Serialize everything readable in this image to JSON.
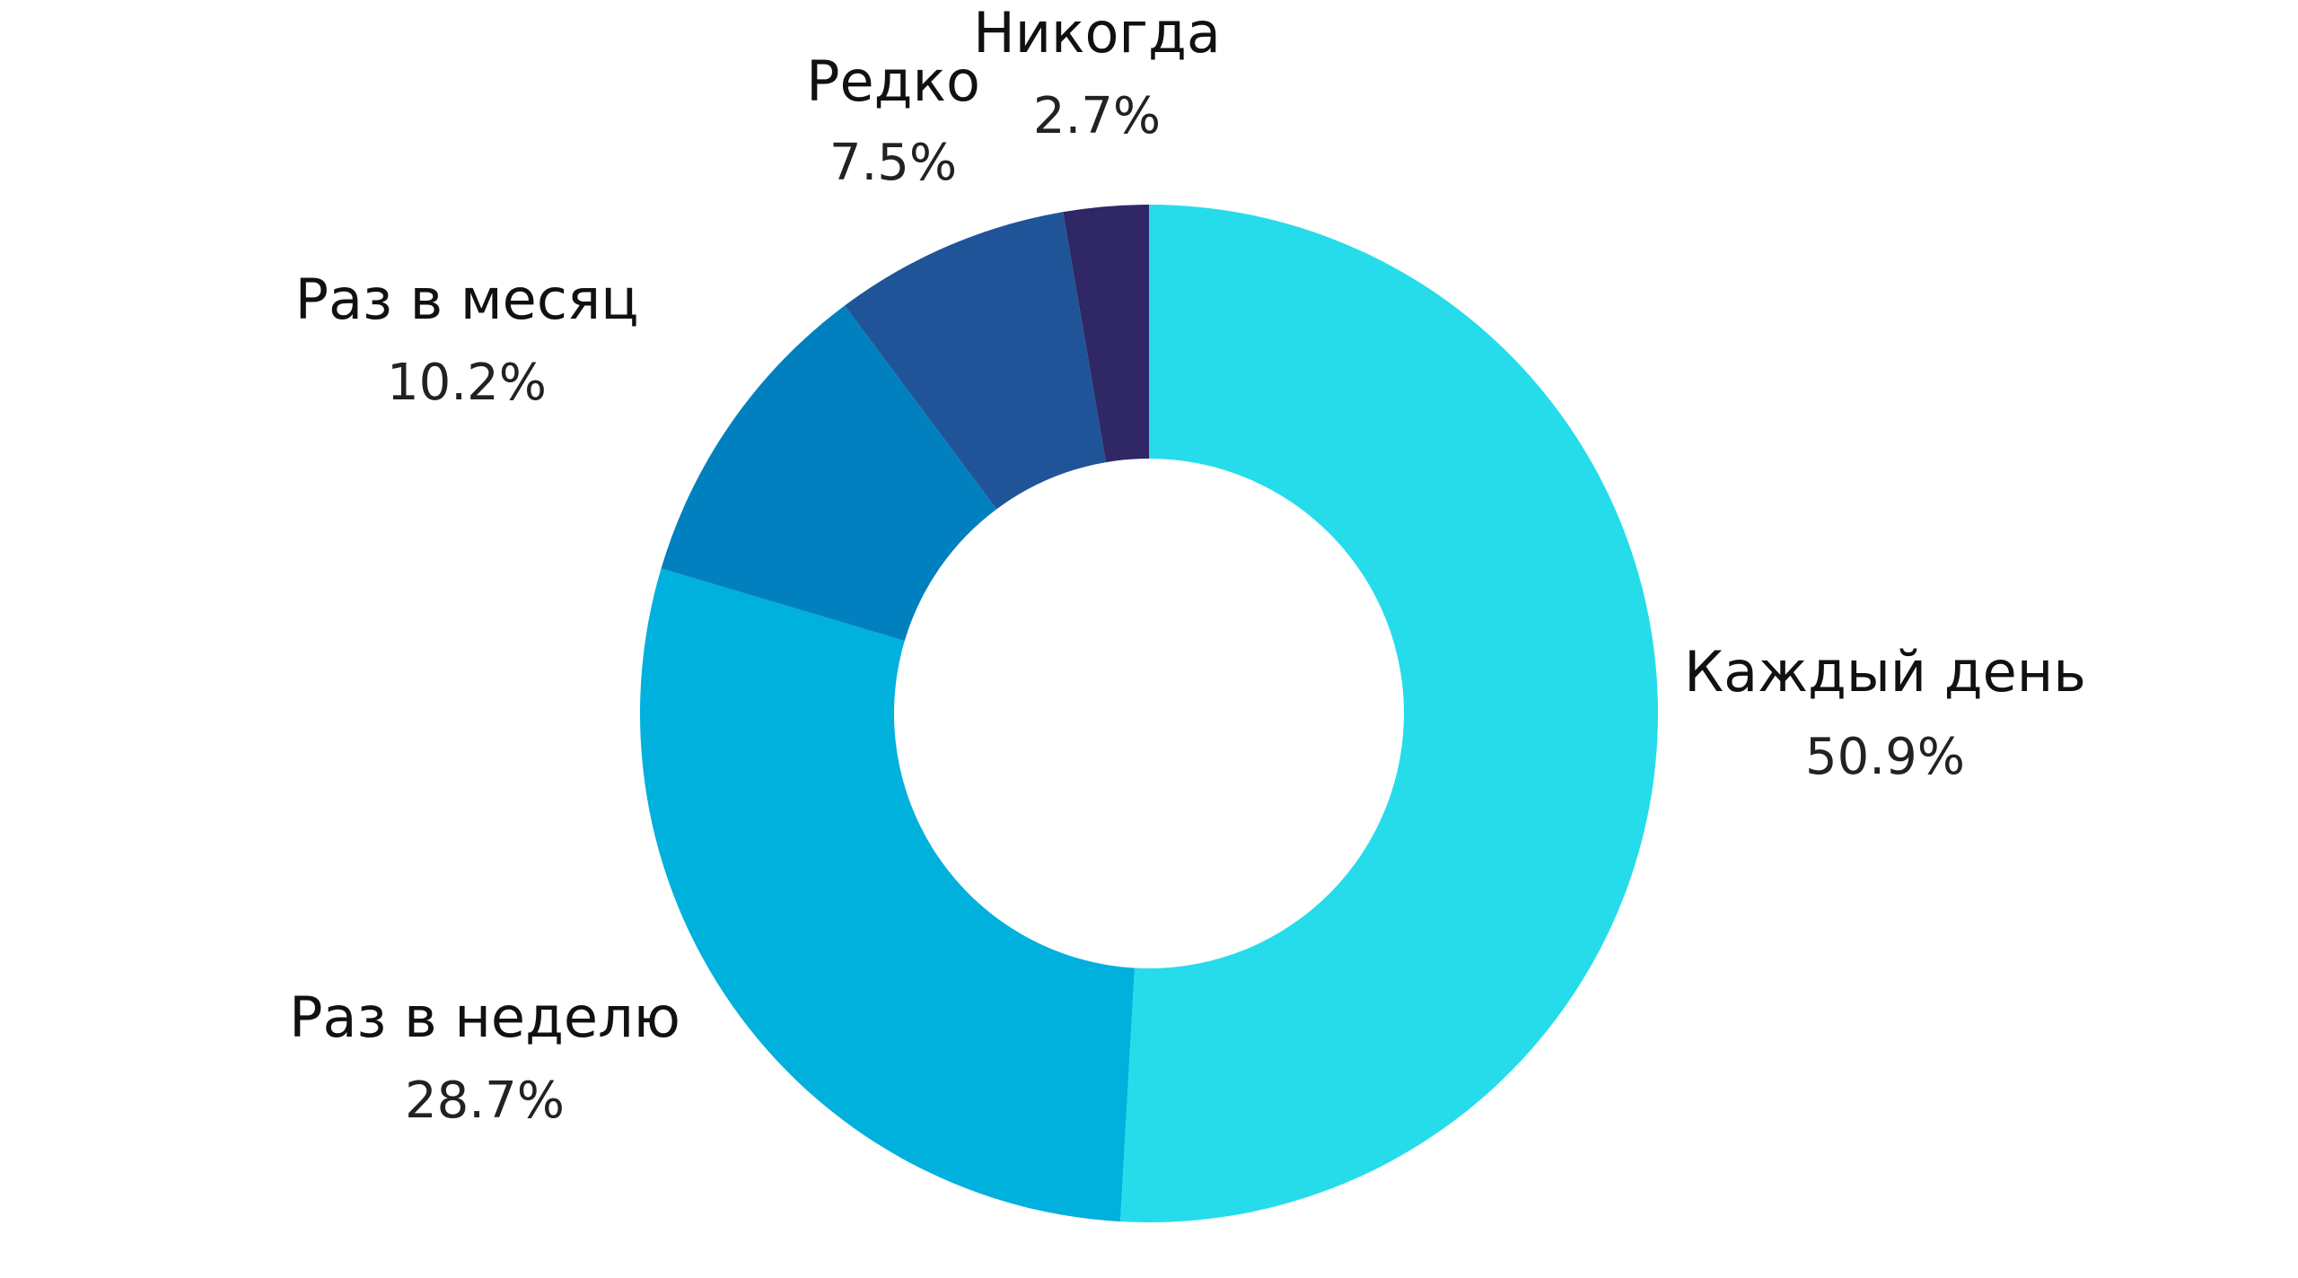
{
  "chart_data": {
    "type": "pie",
    "variant": "donut",
    "slices": [
      {
        "label": "Каждый день",
        "value": 50.9,
        "value_text": "50.9%",
        "color": "#26dcea"
      },
      {
        "label": "Раз в неделю",
        "value": 28.7,
        "value_text": "28.7%",
        "color": "#00b0dd"
      },
      {
        "label": "Раз в месяц",
        "value": 10.2,
        "value_text": "10.2%",
        "color": "#0180c0"
      },
      {
        "label": "Редко",
        "value": 7.5,
        "value_text": "7.5%",
        "color": "#205498"
      },
      {
        "label": "Никогда",
        "value": 2.7,
        "value_text": "2.7%",
        "color": "#2f2766"
      }
    ],
    "start_angle": "top (12 o'clock)",
    "direction": "clockwise",
    "legend": "none",
    "labels_outside": true
  }
}
